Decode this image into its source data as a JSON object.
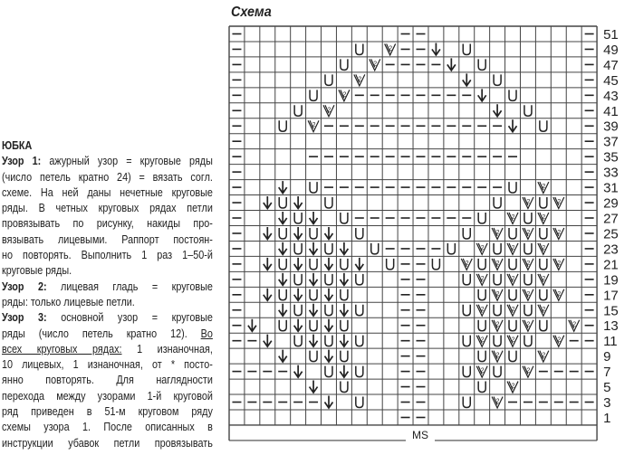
{
  "text": {
    "heading": "ЮБКА",
    "p1_label": "Узор 1:",
    "p1_l1": " ажурный узор = круговые ряды",
    "p1_l2": "(число петель кратно 24) = вязать согл.",
    "p1_l3": "схеме. На ней даны нечетные круговые",
    "p1_l4": "ряды. В четных круговых рядах петли",
    "p1_l5": "провязывать по рисунку, накиды про-",
    "p1_l6": "вязывать лицевыми. Раппорт постоян-",
    "p1_l7": "но повторять. Выполнить 1 раз 1–50-й",
    "p1_l8": "круговые ряды.",
    "p2_label": "Узор 2:",
    "p2_l1": " лицевая гладь = круговые",
    "p2_l2": "ряды: только лицевые петли.",
    "p3_label": "Узор 3:",
    "p3_l1": " основной узор = круговые",
    "p3_l2": "ряды (число петель кратно 12). ",
    "p3_l2_u": "Во",
    "p3_l3_u": "всех круговых рядах:",
    "p3_l3": " 1 изнаночная,",
    "p3_l4": "10 лицевых, 1 изнаночная, от * посто-",
    "p3_l5": "янно повторять. Для наглядности",
    "p3_l6": "перехода между узорами 1-й круговой",
    "p3_l7": "ряд приведен в 51-м круговом ряду",
    "p3_l8": "схемы узора 1. После описанных в",
    "p3_l9": "инструкции убавок петли провязывать"
  },
  "scheme": {
    "title": "Схема",
    "repeat_label": "MS",
    "symbols": {
      "-": "purl-dash",
      "U": "yarn-over",
      "v": "down-arrow-decrease",
      "w": "v-2-decrease",
      ".": "knit-empty"
    },
    "row_labels": [
      "51",
      "49",
      "47",
      "45",
      "43",
      "41",
      "39",
      "37",
      "35",
      "33",
      "31",
      "29",
      "27",
      "25",
      "23",
      "21",
      "19",
      "17",
      "15",
      "13",
      "11",
      "9",
      "7",
      "5",
      "3",
      "1"
    ],
    "rows": [
      "-..........--..........-",
      "-.......U.w--v.U.......-",
      "-......U.w----v.U......-",
      "-.....U.w......v.U.....-",
      "-....U.w--------v.U....-",
      "-...U.w..........v.U...-",
      "-..U.w------------v.U..-",
      "-......................-",
      "-....--------------....-",
      "-......................-",
      "-..v.U------------U.w..-",
      "-.vUv.U..........U.wUw.-",
      "-..vUv.U--------U.wUw..-",
      "-.vUvUv.U......U.wUwUw.-",
      "-..vUvUv.U----U.wUwUw..-",
      "-.vUvUvUv.U--U.wUwUwUw.-",
      "-..vUvUvU..--..UwUwUw..-",
      "-.vUvUvU...--...UwUwUw.-",
      "-..vUvUvU..--..UwUwUw..-",
      "-v.UvUvU...--...UwUwU.w-",
      "--v.UvUvU..--..UwUwU.w--",
      "...v.UvU...--...UwU.w...",
      "----v.UvU..--..UwU.w----",
      ".....v.U...--...U.w.....",
      "------v.U..--..U.w------",
      "...........--..........."
    ]
  }
}
